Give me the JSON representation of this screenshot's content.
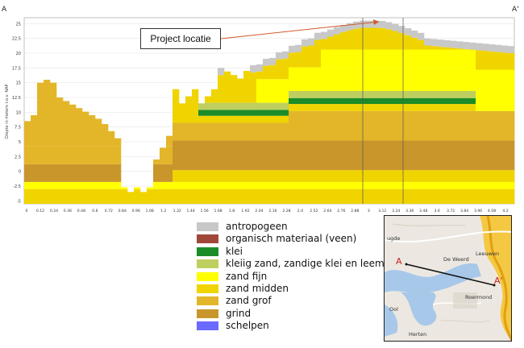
{
  "profile": {
    "section_start": "A",
    "section_end": "A'",
    "y_axis_label": "Diepte in meters t.o.v. NAP",
    "x_ticks": [
      "0",
      "0.12",
      "0.24",
      "0.36",
      "0.48",
      "0.6",
      "0.72",
      "0.84",
      "0.96",
      "1.08",
      "1.2",
      "1.32",
      "1.44",
      "1.56",
      "1.68",
      "1.8",
      "1.92",
      "2.04",
      "2.16",
      "2.28",
      "2.4",
      "2.52",
      "2.64",
      "2.76",
      "2.88",
      "3",
      "3.12",
      "3.24",
      "3.36",
      "3.48",
      "3.6",
      "3.72",
      "3.84",
      "3.96",
      "4.08",
      "4.2"
    ],
    "y_ticks": [
      "25",
      "22.5",
      "20",
      "17.5",
      "15",
      "12.5",
      "10",
      "7.5",
      "5",
      "2.5",
      "0",
      "-2.5",
      "-5"
    ]
  },
  "callout": {
    "text": "Project locatie"
  },
  "legend": [
    {
      "label": "antropogeen",
      "color": "#c8c8c8"
    },
    {
      "label": "organisch materiaal (veen)",
      "color": "#a0473a"
    },
    {
      "label": "klei",
      "color": "#1c8c28"
    },
    {
      "label": "kleiig zand, zandige klei en leem",
      "color": "#bfcf5f"
    },
    {
      "label": "zand fijn",
      "color": "#ffff00"
    },
    {
      "label": "zand midden",
      "color": "#f0d400"
    },
    {
      "label": "zand grof",
      "color": "#e3b62a"
    },
    {
      "label": "grind",
      "color": "#c9962c"
    },
    {
      "label": "schelpen",
      "color": "#6a6aff"
    }
  ],
  "map": {
    "start_label": "A",
    "end_label": "A'",
    "places": [
      "De Weerd",
      "Leeuwen",
      "Roermond",
      "Herten",
      "Ool",
      "ugde"
    ]
  }
}
